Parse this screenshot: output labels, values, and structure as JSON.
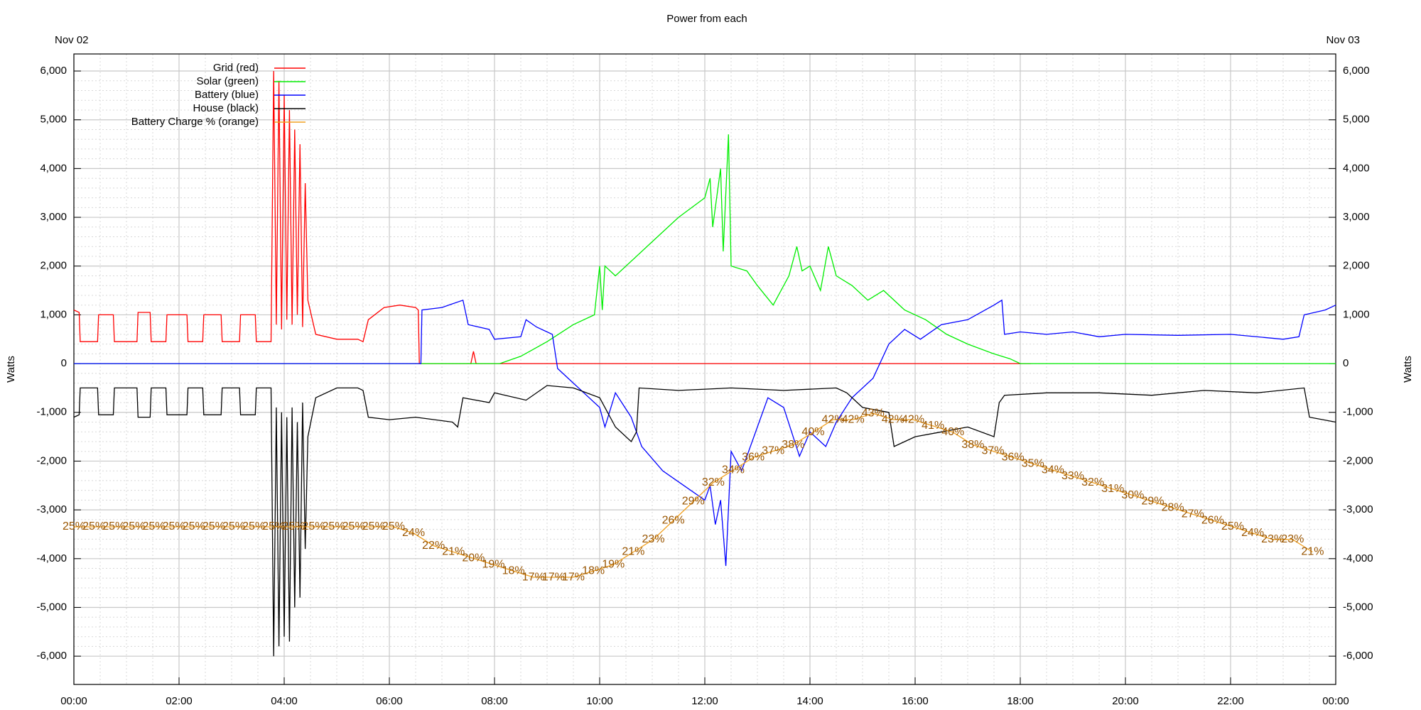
{
  "chart_data": {
    "type": "line",
    "title": "Power from each",
    "annotations": [
      "Nov 02",
      "Nov 03"
    ],
    "ylabel": "Watts",
    "y2label": "Watts",
    "xlim": [
      0,
      24
    ],
    "xticks": [
      {
        "value": 0,
        "label": "00:00"
      },
      {
        "value": 2,
        "label": "02:00"
      },
      {
        "value": 4,
        "label": "04:00"
      },
      {
        "value": 6,
        "label": "06:00"
      },
      {
        "value": 8,
        "label": "08:00"
      },
      {
        "value": 10,
        "label": "10:00"
      },
      {
        "value": 12,
        "label": "12:00"
      },
      {
        "value": 14,
        "label": "14:00"
      },
      {
        "value": 16,
        "label": "16:00"
      },
      {
        "value": 18,
        "label": "18:00"
      },
      {
        "value": 20,
        "label": "20:00"
      },
      {
        "value": 22,
        "label": "22:00"
      },
      {
        "value": 24,
        "label": "00:00"
      }
    ],
    "ylim": [
      -6580,
      6350
    ],
    "yticks": [
      {
        "value": -6000,
        "label": "-6,000"
      },
      {
        "value": -5000,
        "label": "-5,000"
      },
      {
        "value": -4000,
        "label": "-4,000"
      },
      {
        "value": -3000,
        "label": "-3,000"
      },
      {
        "value": -2000,
        "label": "-2,000"
      },
      {
        "value": -1000,
        "label": "-1,000"
      },
      0,
      {
        "value": 1000,
        "label": "1,000"
      },
      {
        "value": 2000,
        "label": "2,000"
      },
      {
        "value": 3000,
        "label": "3,000"
      },
      {
        "value": 4000,
        "label": "4,000"
      },
      {
        "value": 5000,
        "label": "5,000"
      },
      {
        "value": 6000,
        "label": "6,000"
      }
    ],
    "y3lim": [
      0,
      100
    ],
    "grid": true,
    "legend": "top-left",
    "series": [
      {
        "name": "Grid (red)",
        "color": "#ff0000",
        "x": [
          0,
          0.1,
          0.12,
          0.45,
          0.47,
          0.75,
          0.77,
          1.2,
          1.22,
          1.45,
          1.47,
          1.75,
          1.77,
          2.15,
          2.17,
          2.45,
          2.47,
          2.8,
          2.82,
          3.15,
          3.17,
          3.45,
          3.47,
          3.75,
          3.8,
          3.85,
          3.9,
          3.95,
          4.0,
          4.05,
          4.1,
          4.15,
          4.2,
          4.25,
          4.3,
          4.35,
          4.4,
          4.45,
          4.6,
          5.0,
          5.4,
          5.5,
          5.6,
          5.9,
          6.2,
          6.5,
          6.55,
          6.57,
          7.5,
          7.55,
          7.6,
          7.65,
          8.0,
          10,
          12,
          14,
          16,
          18,
          18.2
        ],
        "values": [
          1100,
          1050,
          450,
          450,
          1000,
          1000,
          450,
          450,
          1050,
          1050,
          450,
          450,
          1000,
          1000,
          450,
          450,
          1000,
          1000,
          450,
          450,
          1000,
          1000,
          450,
          450,
          6000,
          800,
          5800,
          700,
          5500,
          900,
          5200,
          800,
          4800,
          1000,
          4500,
          750,
          3700,
          1300,
          600,
          500,
          500,
          450,
          900,
          1150,
          1200,
          1150,
          1100,
          0,
          0,
          0,
          250,
          0,
          0,
          0,
          0,
          0,
          0,
          0,
          0
        ]
      },
      {
        "name": "Solar (green)",
        "color": "#00ee00",
        "x": [
          0,
          8.1,
          8.5,
          9,
          9.5,
          9.9,
          10,
          10.05,
          10.1,
          10.3,
          11,
          11.5,
          12,
          12.1,
          12.15,
          12.3,
          12.35,
          12.45,
          12.5,
          12.8,
          13,
          13.3,
          13.6,
          13.75,
          13.85,
          14,
          14.2,
          14.35,
          14.5,
          14.8,
          15.1,
          15.4,
          15.8,
          16.2,
          16.6,
          17,
          17.5,
          17.8,
          18,
          24
        ],
        "values": [
          0,
          0,
          150,
          450,
          800,
          1000,
          2000,
          1100,
          2000,
          1800,
          2500,
          3000,
          3400,
          3800,
          2800,
          4000,
          2300,
          4700,
          2000,
          1900,
          1600,
          1200,
          1800,
          2400,
          1900,
          2000,
          1500,
          2400,
          1800,
          1600,
          1300,
          1500,
          1100,
          900,
          600,
          400,
          200,
          100,
          0,
          0
        ]
      },
      {
        "name": "Battery (blue)",
        "color": "#0000ff",
        "x": [
          0,
          6.6,
          6.62,
          7.0,
          7.4,
          7.5,
          7.9,
          8.0,
          8.5,
          8.6,
          8.8,
          9.1,
          9.2,
          9.5,
          9.8,
          10.0,
          10.1,
          10.3,
          10.6,
          10.8,
          11.2,
          11.6,
          12.0,
          12.1,
          12.2,
          12.3,
          12.4,
          12.5,
          12.7,
          13.0,
          13.2,
          13.5,
          13.8,
          14.0,
          14.3,
          14.5,
          14.8,
          15.2,
          15.5,
          15.8,
          16.1,
          16.5,
          17.0,
          17.5,
          17.65,
          17.7,
          18,
          18.5,
          19,
          19.5,
          20,
          21,
          22,
          23,
          23.3,
          23.4,
          23.8,
          24
        ],
        "values": [
          0,
          0,
          1100,
          1150,
          1300,
          800,
          700,
          500,
          550,
          900,
          750,
          600,
          -100,
          -400,
          -700,
          -900,
          -1300,
          -600,
          -1100,
          -1700,
          -2200,
          -2500,
          -2800,
          -2500,
          -3300,
          -2800,
          -4150,
          -1800,
          -2200,
          -1300,
          -700,
          -900,
          -1900,
          -1400,
          -1700,
          -1200,
          -700,
          -300,
          400,
          700,
          500,
          800,
          900,
          1200,
          1300,
          600,
          650,
          600,
          650,
          550,
          600,
          580,
          600,
          500,
          550,
          1000,
          1100,
          1200
        ]
      },
      {
        "name": "House (black)",
        "color": "#000000",
        "x": [
          0,
          0.1,
          0.12,
          0.45,
          0.47,
          0.75,
          0.77,
          1.2,
          1.22,
          1.45,
          1.47,
          1.75,
          1.77,
          2.15,
          2.17,
          2.45,
          2.47,
          2.8,
          2.82,
          3.15,
          3.17,
          3.45,
          3.47,
          3.75,
          3.8,
          3.85,
          3.9,
          3.95,
          4.0,
          4.05,
          4.1,
          4.15,
          4.2,
          4.25,
          4.3,
          4.35,
          4.4,
          4.45,
          4.6,
          5.0,
          5.4,
          5.5,
          5.6,
          6.0,
          6.5,
          7.2,
          7.3,
          7.4,
          7.9,
          8.0,
          8.6,
          9.0,
          9.5,
          10.0,
          10.3,
          10.6,
          10.7,
          10.75,
          11.5,
          12.5,
          13.5,
          14.5,
          14.7,
          15.0,
          15.5,
          15.6,
          16.0,
          16.5,
          17.0,
          17.5,
          17.6,
          17.7,
          18.5,
          19.5,
          20.5,
          21.5,
          22.5,
          23.4,
          23.5,
          24
        ],
        "values": [
          -1100,
          -1050,
          -500,
          -500,
          -1050,
          -1050,
          -500,
          -500,
          -1100,
          -1100,
          -500,
          -500,
          -1050,
          -1050,
          -500,
          -500,
          -1050,
          -1050,
          -500,
          -500,
          -1050,
          -1050,
          -500,
          -500,
          -6000,
          -900,
          -5800,
          -1000,
          -5600,
          -1100,
          -5700,
          -900,
          -5000,
          -1200,
          -4800,
          -800,
          -3800,
          -1500,
          -700,
          -500,
          -500,
          -550,
          -1100,
          -1150,
          -1100,
          -1200,
          -1300,
          -700,
          -800,
          -600,
          -750,
          -450,
          -500,
          -700,
          -1300,
          -1600,
          -1400,
          -500,
          -550,
          -500,
          -550,
          -500,
          -600,
          -900,
          -1000,
          -1700,
          -1500,
          -1400,
          -1300,
          -1500,
          -800,
          -650,
          -600,
          -600,
          -650,
          -550,
          -600,
          -500,
          -1100,
          -1200
        ]
      },
      {
        "name": "Battery Charge % (orange)",
        "color": "#f0a020",
        "label_color": "#995500",
        "axis": "y3",
        "x": [
          0,
          0.38,
          0.76,
          1.14,
          1.52,
          1.9,
          2.28,
          2.66,
          3.04,
          3.42,
          3.8,
          4.18,
          4.56,
          4.94,
          5.32,
          5.7,
          6.08,
          6.46,
          6.84,
          7.22,
          7.6,
          7.98,
          8.36,
          8.74,
          9.12,
          9.5,
          9.88,
          10.26,
          10.64,
          11.02,
          11.4,
          11.78,
          12.16,
          12.54,
          12.92,
          13.3,
          13.68,
          14.06,
          14.44,
          14.82,
          15.2,
          15.58,
          15.96,
          16.34,
          16.72,
          17.1,
          17.48,
          17.86,
          18.24,
          18.62,
          19.0,
          19.38,
          19.76,
          20.14,
          20.52,
          20.9,
          21.28,
          21.66,
          22.04,
          22.42,
          22.8,
          23.18,
          23.56
        ],
        "values": [
          25,
          25,
          25,
          25,
          25,
          25,
          25,
          25,
          25,
          25,
          25,
          25,
          25,
          25,
          25,
          25,
          25,
          24,
          22,
          21,
          20,
          19,
          18,
          17,
          17,
          17,
          18,
          19,
          21,
          23,
          26,
          29,
          32,
          34,
          36,
          37,
          38,
          40,
          42,
          42,
          43,
          42,
          42,
          41,
          40,
          38,
          37,
          36,
          35,
          34,
          33,
          32,
          31,
          30,
          29,
          28,
          27,
          26,
          25,
          24,
          23,
          23,
          21
        ],
        "value_labels": [
          "25%",
          "25%",
          "25%",
          "25%",
          "25%",
          "25%",
          "25%",
          "25%",
          "25%",
          "25%",
          "25%",
          "25%",
          "25%",
          "25%",
          "25%",
          "25%",
          "25%",
          "24%",
          "22%",
          "21%",
          "20%",
          "19%",
          "18%",
          "17%",
          "17%",
          "17%",
          "18%",
          "19%",
          "21%",
          "23%",
          "26%",
          "29%",
          "32%",
          "34%",
          "36%",
          "37%",
          "38%",
          "40%",
          "42%",
          "42%",
          "43%",
          "42%",
          "42%",
          "41%",
          "40%",
          "38%",
          "37%",
          "36%",
          "35%",
          "34%",
          "33%",
          "32%",
          "31%",
          "30%",
          "29%",
          "28%",
          "27%",
          "26%",
          "25%",
          "24%",
          "23%",
          "23%",
          "21%"
        ]
      }
    ]
  }
}
